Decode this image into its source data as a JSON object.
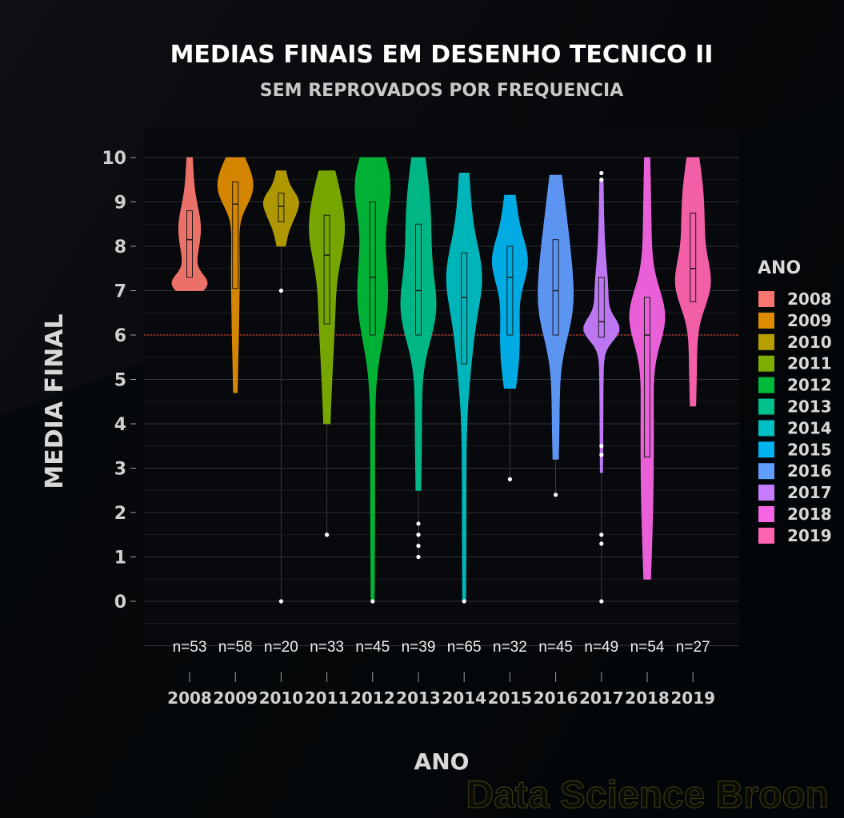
{
  "chart_data": {
    "type": "violin",
    "title": "MEDIAS FINAIS EM DESENHO TECNICO II",
    "subtitle": "SEM REPROVADOS POR FREQUENCIA",
    "xlabel": "ANO",
    "ylabel": "MEDIA FINAL",
    "ylim": [
      0,
      10
    ],
    "yticks": [
      "0",
      "1",
      "2",
      "3",
      "4",
      "5",
      "6",
      "7",
      "8",
      "9",
      "10"
    ],
    "reference_line": {
      "y": 6,
      "color": "#e0302a",
      "style": "dotted"
    },
    "grid": true,
    "legend": {
      "title": "ANO",
      "position": "right"
    },
    "watermark": "Data Science Broon",
    "groups": [
      {
        "label": "2008",
        "n_label": "n=53",
        "color": "#f8766d",
        "min": 7.0,
        "q1": 7.3,
        "median": 8.15,
        "q3": 8.8,
        "max": 10.0,
        "outliers": []
      },
      {
        "label": "2009",
        "n_label": "n=58",
        "color": "#de8c00",
        "min": 4.7,
        "q1": 7.05,
        "median": 8.95,
        "q3": 9.45,
        "max": 10.0,
        "outliers": []
      },
      {
        "label": "2010",
        "n_label": "n=20",
        "color": "#b79f00",
        "min": 8.0,
        "q1": 8.55,
        "median": 8.9,
        "q3": 9.2,
        "max": 9.7,
        "outliers": [
          7.0,
          0.0
        ]
      },
      {
        "label": "2011",
        "n_label": "n=33",
        "color": "#7cae00",
        "min": 4.0,
        "q1": 6.25,
        "median": 7.8,
        "q3": 8.7,
        "max": 9.7,
        "outliers": [
          1.5
        ]
      },
      {
        "label": "2012",
        "n_label": "n=45",
        "color": "#00ba38",
        "min": 0.0,
        "q1": 6.0,
        "median": 7.3,
        "q3": 9.0,
        "max": 10.0,
        "outliers": [
          0.0
        ]
      },
      {
        "label": "2013",
        "n_label": "n=39",
        "color": "#00c08b",
        "min": 2.5,
        "q1": 6.0,
        "median": 7.0,
        "q3": 8.5,
        "max": 10.0,
        "outliers": [
          1.75,
          1.5,
          1.25,
          1.0
        ]
      },
      {
        "label": "2014",
        "n_label": "n=65",
        "color": "#00bfc4",
        "min": 0.0,
        "q1": 5.35,
        "median": 6.85,
        "q3": 7.85,
        "max": 9.65,
        "outliers": [
          0.0
        ]
      },
      {
        "label": "2015",
        "n_label": "n=32",
        "color": "#00b4f0",
        "min": 4.8,
        "q1": 6.0,
        "median": 7.3,
        "q3": 8.0,
        "max": 9.15,
        "outliers": [
          2.75
        ]
      },
      {
        "label": "2016",
        "n_label": "n=45",
        "color": "#619cff",
        "min": 3.2,
        "q1": 6.0,
        "median": 7.0,
        "q3": 8.15,
        "max": 9.6,
        "outliers": [
          2.4
        ]
      },
      {
        "label": "2017",
        "n_label": "n=49",
        "color": "#c77cff",
        "min": 2.9,
        "q1": 5.95,
        "median": 6.3,
        "q3": 7.3,
        "max": 9.5,
        "outliers": [
          9.65,
          9.5,
          3.5,
          3.3,
          1.5,
          1.3,
          0.0
        ]
      },
      {
        "label": "2018",
        "n_label": "n=54",
        "color": "#f564e3",
        "min": 0.5,
        "q1": 3.25,
        "median": 6.0,
        "q3": 6.85,
        "max": 10.0,
        "outliers": []
      },
      {
        "label": "2019",
        "n_label": "n=27",
        "color": "#ff64b0",
        "min": 4.4,
        "q1": 6.75,
        "median": 7.5,
        "q3": 8.75,
        "max": 10.0,
        "outliers": []
      }
    ]
  }
}
